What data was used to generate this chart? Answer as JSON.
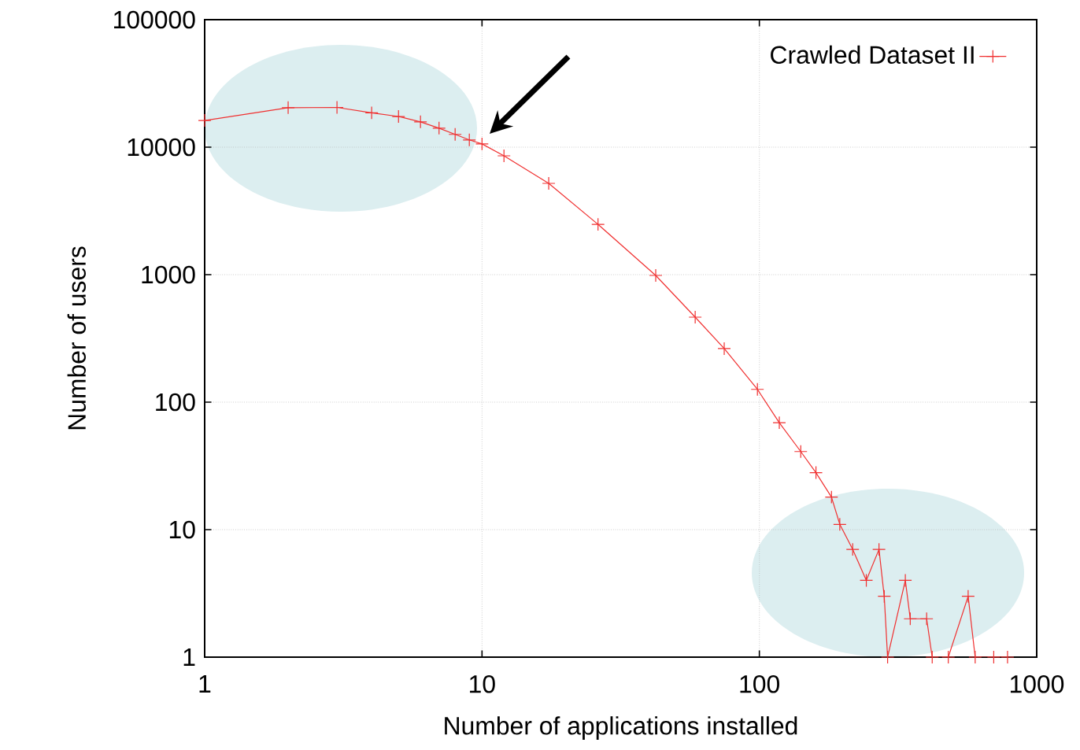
{
  "chart_data": {
    "type": "line",
    "xlabel": "Number of applications installed",
    "ylabel": "Number of users",
    "x": [
      1,
      2,
      3,
      4,
      5,
      6,
      7,
      8,
      9,
      10,
      12,
      17.4,
      26.2,
      42.3,
      58.7,
      74.7,
      98.4,
      118,
      141,
      160,
      182,
      195,
      217,
      243,
      270,
      282,
      290,
      336,
      350,
      401,
      420,
      480,
      566,
      600,
      700,
      785
    ],
    "series": [
      {
        "name": "Crawled Dataset II",
        "color": "#f03030",
        "values": [
          16200,
          20400,
          20500,
          18600,
          17400,
          15800,
          14100,
          12600,
          11400,
          10600,
          8550,
          5200,
          2480,
          986,
          464,
          263,
          126,
          69,
          41,
          28,
          18,
          11,
          7,
          4,
          7,
          3,
          1,
          4,
          2,
          2,
          1,
          1,
          3,
          1,
          1,
          1
        ]
      }
    ],
    "xlim": [
      1,
      1000
    ],
    "ylim": [
      1,
      100000
    ],
    "xticks": [
      1,
      10,
      100,
      1000
    ],
    "yticks": [
      1,
      10,
      100,
      1000,
      10000,
      100000
    ],
    "log": "xy",
    "grid": true,
    "legend": "top right",
    "marker": "cross",
    "line_style": "solid"
  }
}
